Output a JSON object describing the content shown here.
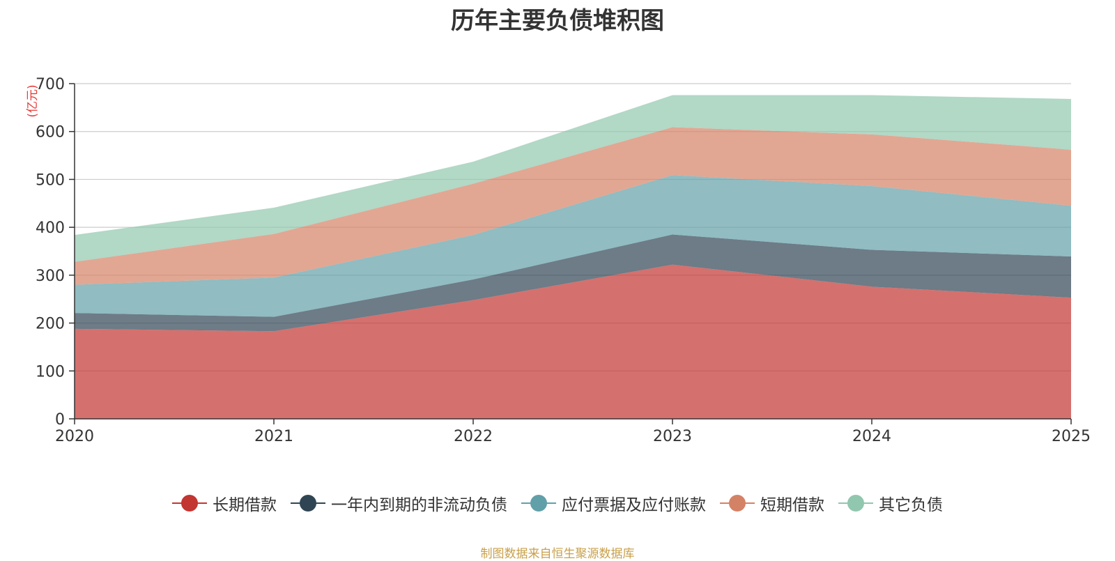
{
  "chart_data": {
    "type": "area",
    "stacked": true,
    "title": "历年主要负债堆积图",
    "unit": "(亿元)",
    "x": [
      "2020",
      "2021",
      "2022",
      "2023",
      "2024",
      "2025"
    ],
    "ylim": [
      0,
      700
    ],
    "yticks": [
      0,
      100,
      200,
      300,
      400,
      500,
      600,
      700
    ],
    "grid": true,
    "legend_position": "bottom",
    "series": [
      {
        "name": "长期借款",
        "color": "#c23531",
        "values": [
          188,
          183,
          248,
          322,
          276,
          253
        ]
      },
      {
        "name": "一年内到期的非流动负债",
        "color": "#2f4554",
        "values": [
          33,
          30,
          43,
          63,
          77,
          86
        ]
      },
      {
        "name": "应付票据及应付账款",
        "color": "#61a0a8",
        "values": [
          59,
          82,
          93,
          124,
          133,
          106
        ]
      },
      {
        "name": "短期借款",
        "color": "#d48265",
        "values": [
          48,
          91,
          107,
          100,
          108,
          117
        ]
      },
      {
        "name": "其它负债",
        "color": "#91c7ae",
        "values": [
          56,
          55,
          46,
          67,
          82,
          106
        ]
      }
    ],
    "source": "制图数据来自恒生聚源数据库"
  }
}
